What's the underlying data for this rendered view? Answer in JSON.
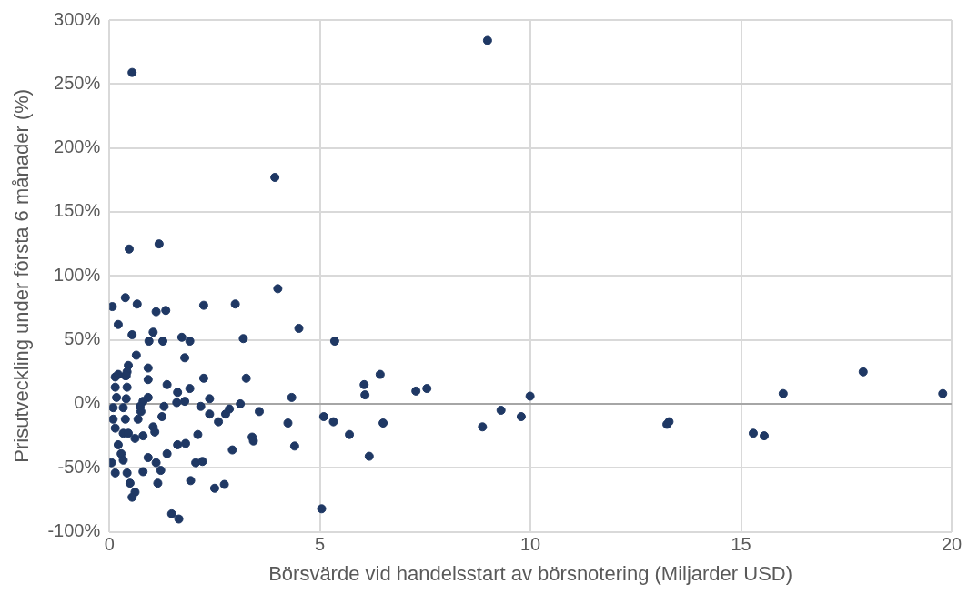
{
  "chart_data": {
    "type": "scatter",
    "xlabel": "Börsvärde vid handelsstart av börsnotering (Miljarder USD)",
    "ylabel": "Prisutveckling under första 6 månader (%)",
    "xlim": [
      0,
      20
    ],
    "xticks": [
      0,
      5,
      10,
      15,
      20
    ],
    "ylim": [
      -100,
      300
    ],
    "yticks": [
      {
        "value": -100,
        "label": "-100%"
      },
      {
        "value": -50,
        "label": "-50%"
      },
      {
        "value": 0,
        "label": "0%"
      },
      {
        "value": 50,
        "label": "50%"
      },
      {
        "value": 100,
        "label": "100%"
      },
      {
        "value": 150,
        "label": "150%"
      },
      {
        "value": 200,
        "label": "200%"
      },
      {
        "value": 250,
        "label": "250%"
      },
      {
        "value": 300,
        "label": "300%"
      }
    ],
    "grid": true,
    "legend": false,
    "marker": "circle",
    "series": [
      {
        "color": "#1f3864",
        "x": [
          0.54,
          8.98,
          3.93,
          4.0,
          0.47,
          1.18,
          0.07,
          0.38,
          0.21,
          0.66,
          1.11,
          1.34,
          2.24,
          2.99,
          0.54,
          1.04,
          0.94,
          1.27,
          1.72,
          1.91,
          3.18,
          4.5,
          5.35,
          1.79,
          0.64,
          0.92,
          0.92,
          2.24,
          3.25,
          0.14,
          0.21,
          0.38,
          0.45,
          0.42,
          6.43,
          7.28,
          7.54,
          6.05,
          6.07,
          4.33,
          9.99,
          17.9,
          16.0,
          19.79,
          5.09,
          5.32,
          6.5,
          4.24,
          3.56,
          3.39,
          4.4,
          5.7,
          6.17,
          5.04,
          8.86,
          9.3,
          9.78,
          13.24,
          13.29,
          15.29,
          15.55,
          0.4,
          1.37,
          1.62,
          1.91,
          0.14,
          0.42,
          0.17,
          0.4,
          0.92,
          0.8,
          0.73,
          1.3,
          1.6,
          1.79,
          2.17,
          2.38,
          2.38,
          2.59,
          2.76,
          2.85,
          3.11,
          3.42,
          2.92,
          0.09,
          0.33,
          0.09,
          0.38,
          0.68,
          0.75,
          0.14,
          0.33,
          0.45,
          0.61,
          0.8,
          1.04,
          1.08,
          1.25,
          2.1,
          1.81,
          1.62,
          1.37,
          0.92,
          1.11,
          1.22,
          0.8,
          0.21,
          0.28,
          0.33,
          0.05,
          0.14,
          0.42,
          0.49,
          1.15,
          0.61,
          0.54,
          2.05,
          2.21,
          1.93,
          2.5,
          2.73,
          1.48,
          1.65
        ],
        "values": [
          259,
          284,
          177,
          90,
          121,
          125,
          76,
          83,
          62,
          78,
          72,
          73,
          77,
          78,
          54,
          56,
          49,
          49,
          52,
          49,
          51,
          59,
          49,
          36,
          38,
          28,
          19,
          20,
          20,
          21,
          23,
          22,
          30,
          25,
          23,
          10,
          12,
          15,
          7,
          5,
          6,
          25,
          8,
          8,
          -10,
          -14,
          -15,
          -15,
          -6,
          -26,
          -33,
          -24,
          -41,
          -82,
          -18,
          -5,
          -10,
          -16,
          -14,
          -23,
          -25,
          22,
          15,
          9,
          12,
          13,
          13,
          5,
          4,
          5,
          2,
          -2,
          -2,
          1,
          2,
          -2,
          4,
          -8,
          -14,
          -8,
          -4,
          0,
          -29,
          -36,
          -3,
          -3,
          -12,
          -12,
          -12,
          -6,
          -19,
          -23,
          -23,
          -27,
          -25,
          -18,
          -22,
          -10,
          -24,
          -31,
          -32,
          -39,
          -42,
          -46,
          -52,
          -53,
          -32,
          -39,
          -44,
          -46,
          -54,
          -54,
          -62,
          -62,
          -69,
          -73,
          -46,
          -45,
          -60,
          -66,
          -63,
          -86,
          -90
        ]
      }
    ]
  }
}
